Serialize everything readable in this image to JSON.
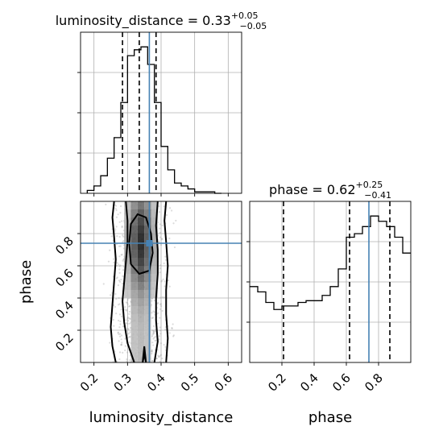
{
  "chart_data": [
    {
      "type": "histogram",
      "panel": "luminosity_distance marginal",
      "title_prefix": "luminosity_distance = 0.33",
      "title_plus": "+0.05",
      "title_minus": "−0.05",
      "xlim": [
        0.16,
        0.64
      ],
      "bin_edges": [
        0.18,
        0.2,
        0.22,
        0.24,
        0.26,
        0.28,
        0.3,
        0.32,
        0.34,
        0.36,
        0.38,
        0.4,
        0.42,
        0.44,
        0.46,
        0.48,
        0.5,
        0.52,
        0.54,
        0.56,
        0.58
      ],
      "density": [
        0.02,
        0.05,
        0.12,
        0.24,
        0.38,
        0.62,
        0.94,
        0.98,
        1.0,
        0.88,
        0.62,
        0.32,
        0.16,
        0.07,
        0.05,
        0.03,
        0.01,
        0.01,
        0.01,
        0.0
      ],
      "quantiles": [
        0.285,
        0.335,
        0.385
      ],
      "truth": 0.365
    },
    {
      "type": "histogram",
      "panel": "phase marginal",
      "title_prefix": "phase = 0.62",
      "title_plus": "+0.25",
      "title_minus": "−0.41",
      "xlim": [
        0.0,
        1.0
      ],
      "xticks": [
        "0.2",
        "0.4",
        "0.6",
        "0.8"
      ],
      "xtick_values": [
        0.2,
        0.4,
        0.6,
        0.8
      ],
      "xlabel": "phase",
      "bin_edges": [
        0.0,
        0.05,
        0.1,
        0.15,
        0.2,
        0.25,
        0.3,
        0.35,
        0.4,
        0.45,
        0.5,
        0.55,
        0.6,
        0.65,
        0.7,
        0.75,
        0.8,
        0.85,
        0.9,
        0.95,
        1.0
      ],
      "density": [
        0.43,
        0.4,
        0.34,
        0.3,
        0.32,
        0.32,
        0.34,
        0.35,
        0.35,
        0.38,
        0.43,
        0.53,
        0.71,
        0.73,
        0.77,
        0.83,
        0.8,
        0.77,
        0.71,
        0.62
      ],
      "quantiles": [
        0.21,
        0.62,
        0.87
      ],
      "truth": 0.74
    },
    {
      "type": "heatmap",
      "panel": "2D posterior (luminosity_distance vs phase)",
      "xlim": [
        0.16,
        0.64
      ],
      "ylim": [
        0.0,
        1.0
      ],
      "xticks": [
        "0.2",
        "0.3",
        "0.4",
        "0.5",
        "0.6"
      ],
      "xtick_values": [
        0.2,
        0.3,
        0.4,
        0.5,
        0.6
      ],
      "yticks": [
        "0.2",
        "0.4",
        "0.6",
        "0.8"
      ],
      "ytick_values": [
        0.2,
        0.4,
        0.6,
        0.8
      ],
      "xlabel": "luminosity_distance",
      "ylabel": "phase",
      "truth_point": [
        0.365,
        0.74
      ],
      "contours": [
        {
          "level": "inner",
          "x": [
            0.31,
            0.335,
            0.365,
            0.375,
            0.37,
            0.355,
            0.33,
            0.31,
            0.305,
            0.31
          ],
          "y": [
            0.61,
            0.55,
            0.57,
            0.68,
            0.8,
            0.9,
            0.92,
            0.86,
            0.74,
            0.61
          ]
        },
        {
          "level": "mid-left",
          "x": [
            0.32,
            0.3,
            0.29,
            0.285,
            0.29,
            0.295,
            0.3,
            0.3,
            0.295
          ],
          "y": [
            0.0,
            0.12,
            0.25,
            0.38,
            0.5,
            0.62,
            0.75,
            0.88,
            1.0
          ]
        },
        {
          "level": "mid-right",
          "x": [
            0.38,
            0.39,
            0.385,
            0.385,
            0.39,
            0.39,
            0.385,
            0.39
          ],
          "y": [
            0.0,
            0.13,
            0.26,
            0.4,
            0.55,
            0.7,
            0.85,
            1.0
          ]
        },
        {
          "level": "outer-left",
          "x": [
            0.265,
            0.255,
            0.25,
            0.255,
            0.26,
            0.265,
            0.26,
            0.255,
            0.26
          ],
          "y": [
            0.0,
            0.1,
            0.22,
            0.36,
            0.5,
            0.64,
            0.78,
            0.9,
            1.0
          ]
        },
        {
          "level": "outer-right",
          "x": [
            0.415,
            0.42,
            0.415,
            0.415,
            0.42,
            0.415,
            0.41,
            0.415
          ],
          "y": [
            0.0,
            0.15,
            0.3,
            0.45,
            0.6,
            0.75,
            0.88,
            1.0
          ]
        },
        {
          "level": "bottom-spike",
          "x": [
            0.345,
            0.35,
            0.355,
            0.35,
            0.345
          ],
          "y": [
            0.0,
            0.05,
            0.0,
            0.1,
            0.0
          ]
        }
      ]
    }
  ]
}
